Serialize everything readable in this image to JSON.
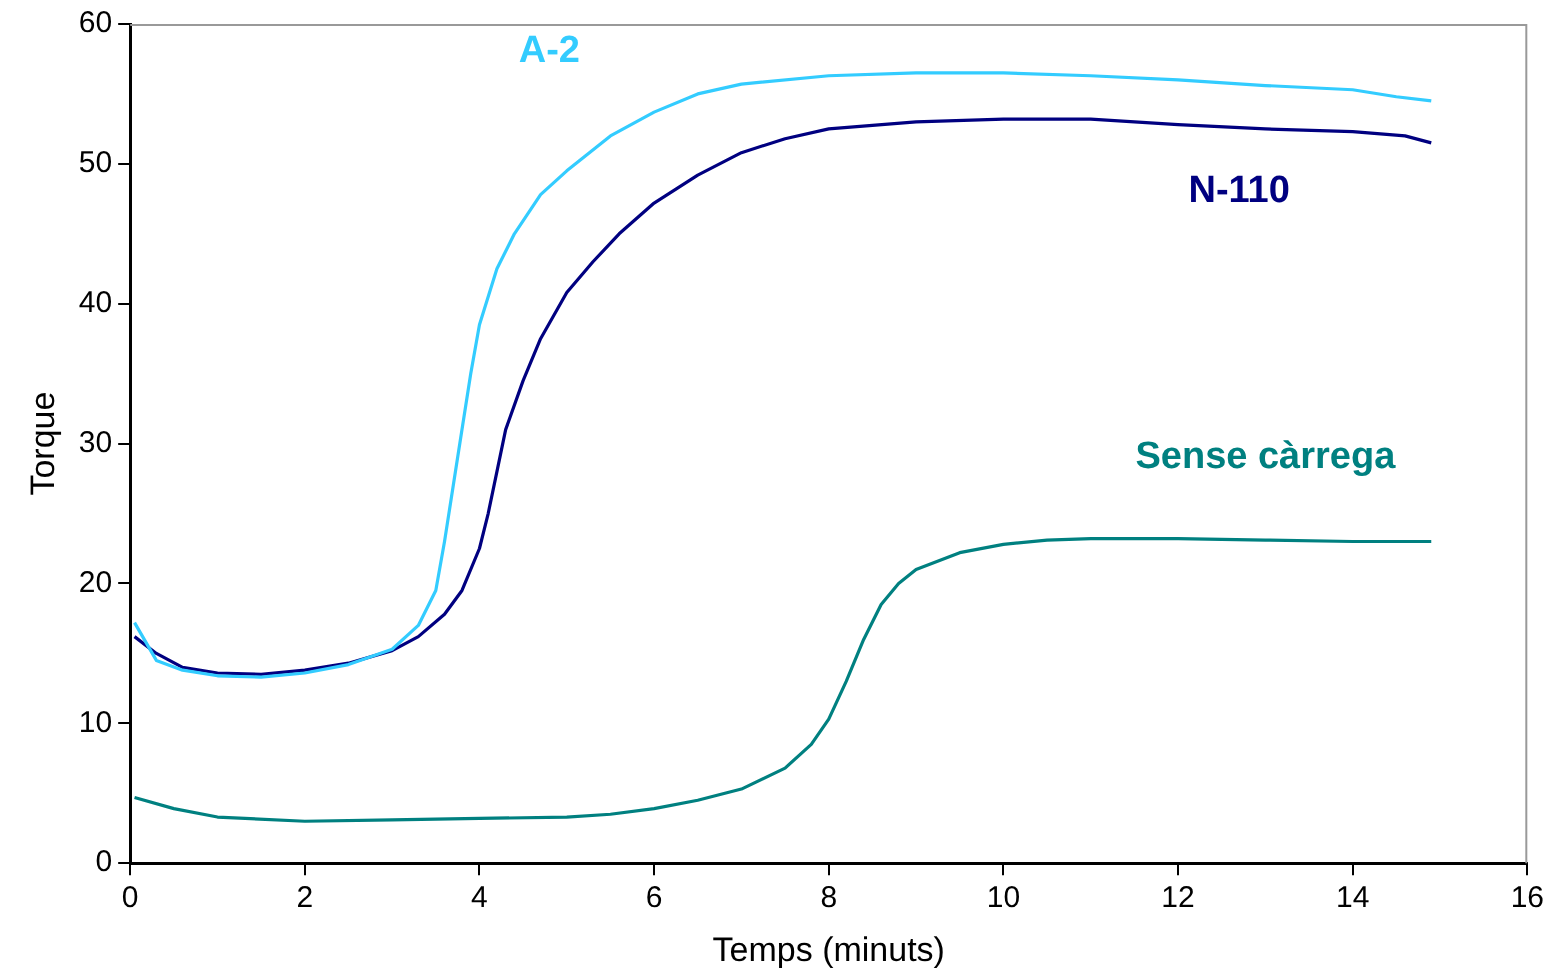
{
  "chart_data": {
    "type": "line",
    "xlabel": "Temps (minuts)",
    "ylabel": "Torque",
    "xlim": [
      0,
      16
    ],
    "ylim": [
      0,
      60
    ],
    "xticks": [
      0,
      2,
      4,
      6,
      8,
      10,
      12,
      14,
      16
    ],
    "yticks": [
      0,
      10,
      20,
      30,
      40,
      50,
      60
    ],
    "grid": false,
    "legend": false,
    "marker": "none",
    "line_style": "solid",
    "series": [
      {
        "name": "A-2",
        "color": "#33ccff",
        "x": [
          0.05,
          0.3,
          0.6,
          1,
          1.5,
          2,
          2.5,
          3,
          3.3,
          3.5,
          3.6,
          3.7,
          3.8,
          3.9,
          4.0,
          4.2,
          4.4,
          4.7,
          5,
          5.5,
          6,
          6.5,
          7,
          8,
          9,
          10,
          11,
          12,
          13,
          14,
          14.5,
          14.9
        ],
        "values": [
          17.2,
          14.5,
          13.8,
          13.4,
          13.3,
          13.6,
          14.2,
          15.3,
          17,
          19.5,
          23,
          27,
          31,
          35,
          38.5,
          42.5,
          45,
          47.8,
          49.5,
          52,
          53.7,
          55,
          55.7,
          56.3,
          56.5,
          56.5,
          56.3,
          56,
          55.6,
          55.3,
          54.8,
          54.5
        ]
      },
      {
        "name": "N-110",
        "color": "#000080",
        "x": [
          0.05,
          0.3,
          0.6,
          1,
          1.5,
          2,
          2.5,
          3,
          3.3,
          3.6,
          3.8,
          4.0,
          4.1,
          4.2,
          4.3,
          4.5,
          4.7,
          5,
          5.3,
          5.6,
          6,
          6.5,
          7,
          7.5,
          8,
          9,
          10,
          11,
          12,
          13,
          14,
          14.6,
          14.9
        ],
        "values": [
          16.2,
          15,
          14,
          13.6,
          13.5,
          13.8,
          14.3,
          15.2,
          16.2,
          17.8,
          19.5,
          22.5,
          25,
          28,
          31,
          34.5,
          37.5,
          40.8,
          43,
          45,
          47.2,
          49.2,
          50.8,
          51.8,
          52.5,
          53,
          53.2,
          53.2,
          52.8,
          52.5,
          52.3,
          52,
          51.5
        ]
      },
      {
        "name": "Sense càrrega",
        "color": "#008080",
        "x": [
          0.05,
          0.5,
          1,
          2,
          3,
          4,
          5,
          5.5,
          6,
          6.5,
          7,
          7.5,
          7.8,
          8,
          8.2,
          8.4,
          8.6,
          8.8,
          9,
          9.5,
          10,
          10.5,
          11,
          12,
          13,
          14,
          14.9
        ],
        "values": [
          4.7,
          3.9,
          3.3,
          3.0,
          3.1,
          3.2,
          3.3,
          3.5,
          3.9,
          4.5,
          5.3,
          6.8,
          8.5,
          10.3,
          13,
          16,
          18.5,
          20,
          21,
          22.2,
          22.8,
          23.1,
          23.2,
          23.2,
          23.1,
          23,
          23
        ]
      }
    ]
  }
}
